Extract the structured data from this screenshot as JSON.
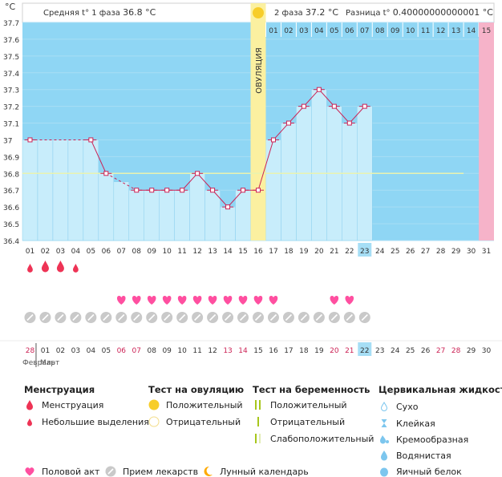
{
  "unit_label": "°C",
  "header": {
    "phase1_label": "Средняя t° 1 фаза",
    "phase1_value": "36.8 °C",
    "phase2_label": "2 фаза",
    "phase2_value": "37.2 °C",
    "diff_label": "Разница t°",
    "diff_value": "0.40000000000001 °C"
  },
  "ovulation_label": "ОВУЛЯЦИЯ",
  "chart_data": {
    "type": "line",
    "title": "",
    "xlabel": "",
    "ylabel": "°C",
    "ylim": [
      36.4,
      37.7
    ],
    "yticks": [
      "37.7",
      "37.6",
      "37.5",
      "37.4",
      "37.3",
      "37.2",
      "37.1",
      "37",
      "36.9",
      "36.8",
      "36.7",
      "36.6",
      "36.5",
      "36.4"
    ],
    "cycle_days": [
      "01",
      "02",
      "03",
      "04",
      "05",
      "06",
      "07",
      "08",
      "09",
      "10",
      "11",
      "12",
      "13",
      "14",
      "15",
      "16",
      "17",
      "18",
      "19",
      "20",
      "21",
      "22",
      "23",
      "24",
      "25",
      "26",
      "27",
      "28",
      "29",
      "30",
      "31"
    ],
    "phase2_day_labels": [
      "01",
      "02",
      "03",
      "04",
      "05",
      "06",
      "07",
      "08",
      "09",
      "10",
      "11",
      "12",
      "13",
      "14",
      "15"
    ],
    "phase2_pink_label": "15",
    "temperatures": [
      37.0,
      null,
      null,
      null,
      37.0,
      36.8,
      null,
      36.7,
      36.7,
      36.7,
      36.7,
      36.8,
      36.7,
      36.6,
      36.7,
      36.7,
      37.0,
      37.1,
      37.2,
      37.3,
      37.2,
      37.1,
      37.2,
      null,
      null,
      null,
      null,
      null,
      null,
      null,
      null
    ],
    "coverline": 36.8,
    "ovulation_day": 16,
    "current_day": 23,
    "menstruation_days": [
      1,
      2,
      3,
      4
    ],
    "menstruation_large_days": [
      2,
      3
    ],
    "intercourse_days": [
      7,
      8,
      9,
      10,
      11,
      12,
      13,
      14,
      15,
      16,
      17,
      21,
      22
    ],
    "medication_days": [
      1,
      2,
      3,
      4,
      5,
      6,
      7,
      8,
      9,
      10,
      11,
      12,
      13,
      14,
      15,
      16,
      17,
      18,
      19,
      20,
      21,
      22,
      23
    ],
    "calendar_dates": [
      "28",
      "01",
      "02",
      "03",
      "04",
      "05",
      "06",
      "07",
      "08",
      "09",
      "10",
      "11",
      "12",
      "13",
      "14",
      "15",
      "16",
      "17",
      "18",
      "19",
      "20",
      "21",
      "22",
      "23",
      "24",
      "25",
      "26",
      "27",
      "28",
      "29",
      "30"
    ],
    "calendar_red_indices": [
      0,
      6,
      7,
      13,
      14,
      20,
      21,
      27,
      28
    ],
    "calendar_today_index": 22,
    "month_labels": [
      "Февраль",
      "Март"
    ]
  },
  "legend": {
    "menstruation": {
      "title": "Менструация",
      "items": [
        "Менструация",
        "Небольшие выделения"
      ]
    },
    "ovulation_test": {
      "title": "Тест на овуляцию",
      "items": [
        "Положительный",
        "Отрицательный"
      ]
    },
    "pregnancy_test": {
      "title": "Тест на беременность",
      "items": [
        "Положительный",
        "Отрицательный",
        "Слабоположительный"
      ]
    },
    "cervical": {
      "title": "Цервикальная жидкость",
      "items": [
        "Сухо",
        "Клейкая",
        "Кремообразная",
        "Водянистая",
        "Яичный белок"
      ]
    },
    "bottom": [
      "Половой акт",
      "Прием лекарств",
      "Лунный календарь"
    ]
  },
  "colors": {
    "sky": "#8fd6f4",
    "column": "#c8edfb",
    "ovulation_band": "#fbf0a0",
    "pink_band": "#f6b3c9",
    "line": "#cc2255",
    "coverline": "#e9f3b0",
    "menstruation": "#ee3355",
    "heart": "#ff4fa0",
    "pill": "#c9c9c9",
    "day_highlight": "#a6def5",
    "red_text": "#cc2255",
    "sun": "#f7cd2a",
    "moon": "#ffaa00",
    "test_green": "#a7c61b",
    "drop_blue": "#7cc6ee"
  }
}
